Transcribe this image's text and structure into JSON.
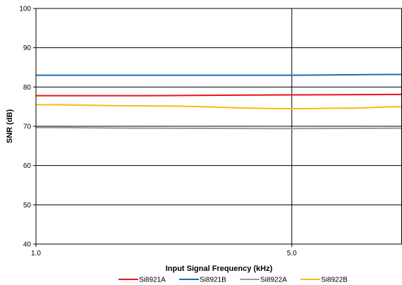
{
  "chart_data": {
    "type": "line",
    "title": "",
    "xlabel": "Input Signal Frequency (kHz)",
    "ylabel": "SNR (dB)",
    "xscale": "log",
    "xlim": [
      1.0,
      10.0
    ],
    "ylim": [
      40,
      100
    ],
    "xticks": [
      "1.0",
      "5.0"
    ],
    "yticks": [
      "40",
      "50",
      "60",
      "70",
      "80",
      "90",
      "100"
    ],
    "grid": true,
    "legend_position": "bottom",
    "series": [
      {
        "name": "Si8921A",
        "color": "#e8141c",
        "x": [
          1.0,
          2.0,
          5.0,
          10.0
        ],
        "y": [
          77.8,
          77.8,
          78.0,
          78.1
        ]
      },
      {
        "name": "Si8921B",
        "color": "#1f6db5",
        "x": [
          1.0,
          2.0,
          5.0,
          10.0
        ],
        "y": [
          83.0,
          83.0,
          83.0,
          83.2
        ]
      },
      {
        "name": "Si8922A",
        "color": "#9a9a9a",
        "x": [
          1.0,
          2.0,
          5.0,
          10.0
        ],
        "y": [
          69.7,
          69.5,
          69.4,
          69.5
        ]
      },
      {
        "name": "Si8922B",
        "color": "#f9b914",
        "x": [
          1.0,
          2.0,
          5.0,
          7.0,
          10.0
        ],
        "y": [
          75.5,
          75.2,
          74.5,
          74.6,
          75.0
        ]
      }
    ]
  }
}
